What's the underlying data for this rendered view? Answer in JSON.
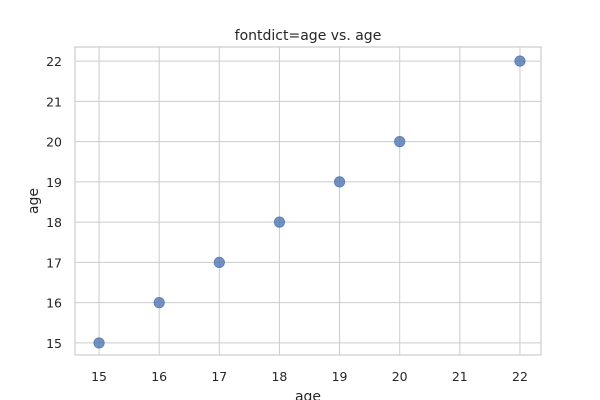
{
  "chart_data": {
    "type": "scatter",
    "title": "fontdict=age vs. age",
    "xlabel": "age",
    "ylabel": "age",
    "x": [
      15,
      16,
      17,
      18,
      19,
      20,
      22
    ],
    "y": [
      15,
      16,
      17,
      18,
      19,
      20,
      22
    ],
    "xlim": [
      14.6,
      22.35
    ],
    "ylim": [
      14.7,
      22.35
    ],
    "xticks": [
      15,
      16,
      17,
      18,
      19,
      20,
      21,
      22
    ],
    "yticks": [
      15,
      16,
      17,
      18,
      19,
      20,
      21,
      22
    ],
    "grid": true,
    "colors": {
      "point": "#4c72b0",
      "grid": "#cccccc",
      "spine": "#cccccc",
      "text": "#262626"
    }
  }
}
